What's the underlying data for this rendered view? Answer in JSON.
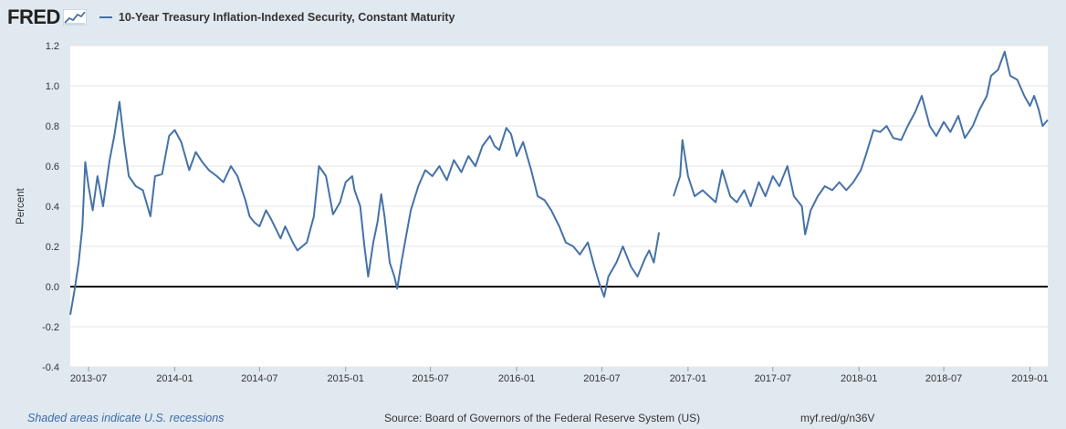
{
  "header": {
    "logo_text": "FRED",
    "logo_icon": "line-chart-icon",
    "legend_label": "10-Year Treasury Inflation-Indexed Security, Constant Maturity"
  },
  "colors": {
    "series": "#4572a7",
    "background": "#e1e9f0",
    "plot": "#ffffff",
    "grid": "#e6e6e6",
    "zero_line": "#000000"
  },
  "footer": {
    "recession_note": "Shaded areas indicate U.S. recessions",
    "source": "Source: Board of Governors of the Federal Reserve System (US)",
    "url": "myf.red/g/n36V"
  },
  "chart_data": {
    "type": "line",
    "title": "",
    "xlabel": "",
    "ylabel": "Percent",
    "ylim": [
      -0.4,
      1.2
    ],
    "yticks": [
      "-0.4",
      "-0.2",
      "0.0",
      "0.2",
      "0.4",
      "0.6",
      "0.8",
      "1.0",
      "1.2"
    ],
    "xlim": [
      "2013-05-23",
      "2019-02-08"
    ],
    "xticks": [
      "2013-07",
      "2014-01",
      "2014-07",
      "2015-01",
      "2015-07",
      "2016-01",
      "2016-07",
      "2017-01",
      "2017-07",
      "2018-01",
      "2018-07",
      "2019-01"
    ],
    "grid": true,
    "legend": "top-left",
    "reference_line": 0.0,
    "series": [
      {
        "name": "10-Year Treasury Inflation-Indexed Security, Constant Maturity",
        "points": [
          [
            "2013-05-23",
            -0.14
          ],
          [
            "2013-06-01",
            -0.02
          ],
          [
            "2013-06-10",
            0.12
          ],
          [
            "2013-06-18",
            0.3
          ],
          [
            "2013-06-24",
            0.62
          ],
          [
            "2013-07-01",
            0.5
          ],
          [
            "2013-07-10",
            0.38
          ],
          [
            "2013-07-20",
            0.55
          ],
          [
            "2013-08-01",
            0.4
          ],
          [
            "2013-08-15",
            0.63
          ],
          [
            "2013-08-25",
            0.75
          ],
          [
            "2013-09-05",
            0.92
          ],
          [
            "2013-09-15",
            0.72
          ],
          [
            "2013-09-25",
            0.55
          ],
          [
            "2013-10-10",
            0.5
          ],
          [
            "2013-10-25",
            0.48
          ],
          [
            "2013-11-10",
            0.35
          ],
          [
            "2013-11-20",
            0.55
          ],
          [
            "2013-12-05",
            0.56
          ],
          [
            "2013-12-20",
            0.75
          ],
          [
            "2014-01-01",
            0.78
          ],
          [
            "2014-01-15",
            0.72
          ],
          [
            "2014-02-01",
            0.58
          ],
          [
            "2014-02-15",
            0.67
          ],
          [
            "2014-03-01",
            0.62
          ],
          [
            "2014-03-15",
            0.58
          ],
          [
            "2014-04-01",
            0.55
          ],
          [
            "2014-04-15",
            0.52
          ],
          [
            "2014-05-01",
            0.6
          ],
          [
            "2014-05-15",
            0.55
          ],
          [
            "2014-06-01",
            0.43
          ],
          [
            "2014-06-10",
            0.35
          ],
          [
            "2014-06-20",
            0.32
          ],
          [
            "2014-07-01",
            0.3
          ],
          [
            "2014-07-15",
            0.38
          ],
          [
            "2014-07-25",
            0.34
          ],
          [
            "2014-08-15",
            0.24
          ],
          [
            "2014-08-25",
            0.3
          ],
          [
            "2014-09-10",
            0.22
          ],
          [
            "2014-09-20",
            0.18
          ],
          [
            "2014-10-10",
            0.22
          ],
          [
            "2014-10-25",
            0.35
          ],
          [
            "2014-11-05",
            0.6
          ],
          [
            "2014-11-20",
            0.55
          ],
          [
            "2014-12-05",
            0.36
          ],
          [
            "2014-12-20",
            0.42
          ],
          [
            "2015-01-01",
            0.52
          ],
          [
            "2015-01-15",
            0.55
          ],
          [
            "2015-01-20",
            0.48
          ],
          [
            "2015-02-01",
            0.4
          ],
          [
            "2015-02-10",
            0.2
          ],
          [
            "2015-02-18",
            0.05
          ],
          [
            "2015-03-01",
            0.22
          ],
          [
            "2015-03-10",
            0.32
          ],
          [
            "2015-03-18",
            0.46
          ],
          [
            "2015-03-25",
            0.35
          ],
          [
            "2015-04-05",
            0.12
          ],
          [
            "2015-04-15",
            0.05
          ],
          [
            "2015-04-21",
            -0.01
          ],
          [
            "2015-04-30",
            0.12
          ],
          [
            "2015-05-10",
            0.25
          ],
          [
            "2015-05-20",
            0.38
          ],
          [
            "2015-06-05",
            0.5
          ],
          [
            "2015-06-20",
            0.58
          ],
          [
            "2015-07-05",
            0.55
          ],
          [
            "2015-07-20",
            0.6
          ],
          [
            "2015-08-05",
            0.53
          ],
          [
            "2015-08-20",
            0.63
          ],
          [
            "2015-09-05",
            0.57
          ],
          [
            "2015-09-20",
            0.65
          ],
          [
            "2015-10-05",
            0.6
          ],
          [
            "2015-10-20",
            0.7
          ],
          [
            "2015-11-05",
            0.75
          ],
          [
            "2015-11-15",
            0.7
          ],
          [
            "2015-11-25",
            0.68
          ],
          [
            "2015-12-10",
            0.79
          ],
          [
            "2015-12-20",
            0.76
          ],
          [
            "2016-01-01",
            0.65
          ],
          [
            "2016-01-15",
            0.72
          ],
          [
            "2016-02-01",
            0.58
          ],
          [
            "2016-02-15",
            0.45
          ],
          [
            "2016-03-01",
            0.43
          ],
          [
            "2016-03-15",
            0.38
          ],
          [
            "2016-04-01",
            0.3
          ],
          [
            "2016-04-15",
            0.22
          ],
          [
            "2016-05-01",
            0.2
          ],
          [
            "2016-05-15",
            0.16
          ],
          [
            "2016-06-01",
            0.22
          ],
          [
            "2016-06-15",
            0.1
          ],
          [
            "2016-06-25",
            0.02
          ],
          [
            "2016-07-06",
            -0.05
          ],
          [
            "2016-07-15",
            0.05
          ],
          [
            "2016-08-01",
            0.12
          ],
          [
            "2016-08-15",
            0.2
          ],
          [
            "2016-09-01",
            0.1
          ],
          [
            "2016-09-15",
            0.05
          ],
          [
            "2016-10-01",
            0.14
          ],
          [
            "2016-10-10",
            0.18
          ],
          [
            "2016-10-20",
            0.12
          ],
          [
            "2016-10-31",
            0.27
          ],
          [
            null,
            null
          ],
          [
            "2016-12-01",
            0.45
          ],
          [
            "2016-12-15",
            0.55
          ],
          [
            "2016-12-20",
            0.73
          ],
          [
            "2017-01-01",
            0.55
          ],
          [
            "2017-01-15",
            0.45
          ],
          [
            "2017-02-01",
            0.48
          ],
          [
            "2017-02-15",
            0.45
          ],
          [
            "2017-03-01",
            0.42
          ],
          [
            "2017-03-15",
            0.58
          ],
          [
            "2017-04-01",
            0.45
          ],
          [
            "2017-04-15",
            0.42
          ],
          [
            "2017-05-01",
            0.48
          ],
          [
            "2017-05-15",
            0.4
          ],
          [
            "2017-06-01",
            0.52
          ],
          [
            "2017-06-15",
            0.45
          ],
          [
            "2017-07-01",
            0.55
          ],
          [
            "2017-07-15",
            0.5
          ],
          [
            "2017-08-01",
            0.6
          ],
          [
            "2017-08-15",
            0.45
          ],
          [
            "2017-09-01",
            0.4
          ],
          [
            "2017-09-08",
            0.26
          ],
          [
            "2017-09-20",
            0.38
          ],
          [
            "2017-10-05",
            0.45
          ],
          [
            "2017-10-20",
            0.5
          ],
          [
            "2017-11-05",
            0.48
          ],
          [
            "2017-11-20",
            0.52
          ],
          [
            "2017-12-05",
            0.48
          ],
          [
            "2017-12-20",
            0.52
          ],
          [
            "2018-01-05",
            0.58
          ],
          [
            "2018-01-15",
            0.65
          ],
          [
            "2018-02-01",
            0.78
          ],
          [
            "2018-02-15",
            0.77
          ],
          [
            "2018-03-01",
            0.8
          ],
          [
            "2018-03-15",
            0.74
          ],
          [
            "2018-04-01",
            0.73
          ],
          [
            "2018-04-15",
            0.8
          ],
          [
            "2018-05-01",
            0.87
          ],
          [
            "2018-05-15",
            0.95
          ],
          [
            "2018-06-01",
            0.8
          ],
          [
            "2018-06-15",
            0.75
          ],
          [
            "2018-07-01",
            0.82
          ],
          [
            "2018-07-15",
            0.77
          ],
          [
            "2018-08-01",
            0.85
          ],
          [
            "2018-08-15",
            0.74
          ],
          [
            "2018-09-01",
            0.8
          ],
          [
            "2018-09-15",
            0.88
          ],
          [
            "2018-10-01",
            0.95
          ],
          [
            "2018-10-10",
            1.05
          ],
          [
            "2018-10-25",
            1.08
          ],
          [
            "2018-11-08",
            1.17
          ],
          [
            "2018-11-20",
            1.05
          ],
          [
            "2018-12-05",
            1.03
          ],
          [
            "2018-12-20",
            0.95
          ],
          [
            "2019-01-01",
            0.9
          ],
          [
            "2019-01-10",
            0.95
          ],
          [
            "2019-01-20",
            0.88
          ],
          [
            "2019-01-28",
            0.8
          ],
          [
            "2019-02-08",
            0.83
          ]
        ]
      }
    ]
  }
}
